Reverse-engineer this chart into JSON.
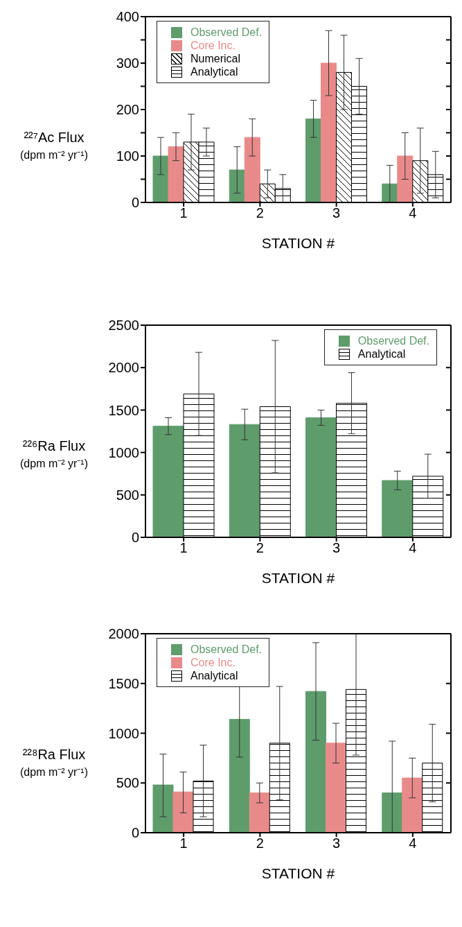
{
  "chart_data": [
    {
      "type": "bar",
      "ylabel": "²²⁷Ac Flux\n(dpm m⁻² yr⁻¹)",
      "xlabel": "STATION #",
      "categories": [
        "1",
        "2",
        "3",
        "4"
      ],
      "series": [
        {
          "name": "Observed Def.",
          "color": "#5e9c6c",
          "values": [
            100,
            70,
            180,
            40
          ],
          "errors": [
            [
              60,
              140
            ],
            [
              20,
              120
            ],
            [
              140,
              220
            ],
            [
              0,
              80
            ]
          ]
        },
        {
          "name": "Core Inc.",
          "color": "#e98a8a",
          "values": [
            120,
            140,
            300,
            100
          ],
          "errors": [
            [
              90,
              150
            ],
            [
              100,
              180
            ],
            [
              230,
              370
            ],
            [
              50,
              150
            ]
          ]
        },
        {
          "name": "Numerical",
          "color": "#000000",
          "values": [
            130,
            40,
            280,
            90
          ],
          "errors": [
            [
              70,
              190
            ],
            [
              10,
              70
            ],
            [
              200,
              360
            ],
            [
              20,
              160
            ]
          ]
        },
        {
          "name": "Analytical",
          "color": "#000000",
          "values": [
            130,
            30,
            250,
            60
          ],
          "errors": [
            [
              100,
              160
            ],
            [
              0,
              60
            ],
            [
              190,
              310
            ],
            [
              10,
              110
            ]
          ]
        }
      ],
      "ylim": [
        0,
        400
      ],
      "yticks": [
        0,
        {
          "value": 50,
          "label": null
        },
        100,
        {
          "value": 150,
          "label": null
        },
        200,
        {
          "value": 250,
          "label": null
        },
        300,
        {
          "value": 350,
          "label": null
        },
        400
      ],
      "legend": "top left"
    },
    {
      "type": "bar",
      "ylabel": "²²⁶Ra Flux\n(dpm m⁻² yr⁻¹)",
      "xlabel": "STATION #",
      "categories": [
        "1",
        "2",
        "3",
        "4"
      ],
      "series": [
        {
          "name": "Observed Def.",
          "color": "#5e9c6c",
          "values": [
            1310,
            1330,
            1410,
            670
          ],
          "errors": [
            [
              1210,
              1410
            ],
            [
              1150,
              1510
            ],
            [
              1320,
              1500
            ],
            [
              560,
              780
            ]
          ]
        },
        {
          "name": "Analytical",
          "color": "#000000",
          "values": [
            1690,
            1540,
            1580,
            720
          ],
          "errors": [
            [
              1200,
              2180
            ],
            [
              760,
              2320
            ],
            [
              1220,
              1940
            ],
            [
              460,
              980
            ]
          ]
        }
      ],
      "ylim": [
        0,
        2500
      ],
      "yticks": [
        0,
        500,
        1000,
        1500,
        2000,
        2500
      ],
      "legend": "top right"
    },
    {
      "type": "bar",
      "ylabel": "²²⁸Ra Flux\n(dpm m⁻² yr⁻¹)",
      "xlabel": "STATION #",
      "categories": [
        "1",
        "2",
        "3",
        "4"
      ],
      "series": [
        {
          "name": "Observed Def.",
          "color": "#5e9c6c",
          "values": [
            480,
            1140,
            1420,
            400
          ],
          "errors": [
            [
              160,
              790
            ],
            380,
            [
              930,
              1910
            ],
            [
              0,
              920
            ]
          ]
        },
        {
          "name": "Core Inc.",
          "color": "#e98a8a",
          "values": [
            410,
            400,
            900,
            550
          ],
          "errors": [
            [
              200,
              610
            ],
            [
              300,
              500
            ],
            [
              700,
              1100
            ],
            [
              350,
              750
            ]
          ]
        },
        {
          "name": "Analytical",
          "color": "#000000",
          "values": [
            520,
            900,
            1440,
            700
          ],
          "errors": [
            [
              160,
              880
            ],
            [
              330,
              1470
            ],
            [
              780,
              2000
            ],
            [
              310,
              1090
            ]
          ]
        }
      ],
      "ylim": [
        0,
        2000
      ],
      "yticks": [
        0,
        500,
        1000,
        1500,
        2000
      ],
      "legend": "top left"
    }
  ]
}
